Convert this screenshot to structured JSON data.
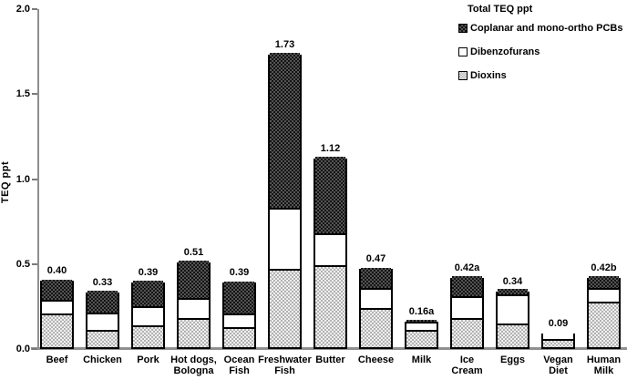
{
  "chart_data": {
    "type": "bar",
    "stacked": true,
    "ylabel": "TEQ ppt",
    "ylim": [
      0,
      2.0
    ],
    "grid": false,
    "yticks": [
      0.0,
      0.5,
      1.0,
      1.5,
      2.0
    ],
    "ytick_labels": [
      "0.0",
      "0.5",
      "1.0",
      "1.5",
      "2.0"
    ],
    "categories": [
      "Beef",
      "Chicken",
      "Pork",
      "Hot dogs,\nBologna",
      "Ocean\nFish",
      "Freshwater\nFish",
      "Butter",
      "Cheese",
      "Milk",
      "Ice\nCream",
      "Eggs",
      "Vegan\nDiet",
      "Human\nMilk"
    ],
    "bar_total_labels": [
      "0.40",
      "0.33",
      "0.39",
      "0.51",
      "0.39",
      "1.73",
      "1.12",
      "0.47",
      "0.16a",
      "0.42a",
      "0.34",
      "0.09",
      "0.42b"
    ],
    "series": [
      {
        "name": "Dioxins",
        "key": "dioxins",
        "values": [
          0.2,
          0.1,
          0.13,
          0.17,
          0.12,
          0.46,
          0.48,
          0.23,
          0.1,
          0.17,
          0.14,
          0.05,
          0.27
        ]
      },
      {
        "name": "Dibenzofurans",
        "key": "dibenzofurans",
        "values": [
          0.08,
          0.1,
          0.11,
          0.12,
          0.08,
          0.36,
          0.19,
          0.12,
          0.05,
          0.13,
          0.17,
          0.04,
          0.08
        ]
      },
      {
        "name": "Coplanar and mono-ortho PCBs",
        "key": "pcbs",
        "values": [
          0.12,
          0.13,
          0.15,
          0.22,
          0.19,
          0.91,
          0.45,
          0.12,
          0.01,
          0.12,
          0.03,
          0.0,
          0.07
        ]
      }
    ],
    "legend": {
      "title": "Total TEQ ppt",
      "position": "top-right",
      "items": [
        {
          "label": "Coplanar and mono-ortho PCBs",
          "swatch": "pcbs"
        },
        {
          "label": "Dibenzofurans",
          "swatch": "dibenzofurans"
        },
        {
          "label": "Dioxins",
          "swatch": "dioxins"
        }
      ]
    },
    "colors": {
      "pcbs_pattern_dark": "#141414",
      "pcbs_pattern_light": "#545454",
      "dioxins_pattern_dark": "#b2b2b2",
      "dioxins_pattern_light": "#efefef",
      "dibenzofurans_fill": "#ffffff",
      "bar_border": "#000000",
      "axis": "#8f8f8f",
      "text": "#000000",
      "background": "#ffffff"
    }
  }
}
